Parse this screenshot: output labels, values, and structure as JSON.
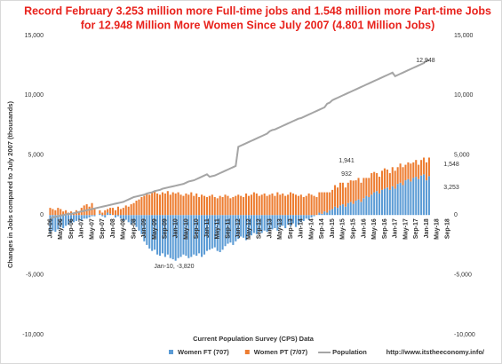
{
  "chart_data": {
    "type": "bar",
    "title": [
      "Record February 3.253 million more Full-time  jobs  and 1.548 million more Part-time Jobs",
      "for 12.948 Million More Women Since July 2007 (4.801 Million Jobs)"
    ],
    "y_axis_label": "Changes in Jobs compared to July 2007 (thousands)",
    "x_axis_label": "Current Population Survey (CPS) Data",
    "source": "http://www.itstheeconomy.info/",
    "categories": [
      "Jan-06",
      null,
      null,
      null,
      "May-06",
      null,
      null,
      null,
      "Sep-06",
      null,
      null,
      null,
      "Jan-07",
      null,
      null,
      null,
      "May-07",
      null,
      null,
      null,
      "Sep-07",
      null,
      null,
      null,
      "Jan-08",
      null,
      null,
      null,
      "May-08",
      null,
      null,
      null,
      "Sep-08",
      null,
      null,
      null,
      "Jan-09",
      null,
      null,
      null,
      "May-09",
      null,
      null,
      null,
      "Sep-09",
      null,
      null,
      null,
      "Jan-10",
      null,
      null,
      null,
      "May-10",
      null,
      null,
      null,
      "Sep-10",
      null,
      null,
      null,
      "Jan-11",
      null,
      null,
      null,
      "May-11",
      null,
      null,
      null,
      "Sep-11",
      null,
      null,
      null,
      "Jan-12",
      null,
      null,
      null,
      "May-12",
      null,
      null,
      null,
      "Sep-12",
      null,
      null,
      null,
      "Jan-13",
      null,
      null,
      null,
      "May-13",
      null,
      null,
      null,
      "Sep-13",
      null,
      null,
      null,
      "Jan-14",
      null,
      null,
      null,
      "May-14",
      null,
      null,
      null,
      "Sep-14",
      null,
      null,
      null,
      "Jan-15",
      null,
      null,
      null,
      "May-15",
      null,
      null,
      null,
      "Sep-15",
      null,
      null,
      null,
      "Jan-16",
      null,
      null,
      null,
      "May-16",
      null,
      null,
      null,
      "Sep-16",
      null,
      null,
      null,
      "Jan-17",
      null,
      null,
      null,
      "May-17",
      null,
      null,
      null,
      "Sep-17",
      null,
      null,
      null,
      "Jan-18",
      null,
      null,
      null,
      "May-18",
      null,
      null,
      null,
      "Sep-18"
    ],
    "series": [
      {
        "name": "Women FT (707)",
        "color": "#5b9bd5",
        "kind": "bar",
        "values": [
          -1500,
          -1300,
          -1400,
          -1200,
          -1000,
          -1100,
          -900,
          -800,
          -700,
          -600,
          -500,
          -400,
          -500,
          -300,
          -300,
          -200,
          -100,
          -100,
          0,
          100,
          -100,
          -200,
          200,
          100,
          0,
          -200,
          -100,
          -300,
          -500,
          -400,
          -600,
          -800,
          -700,
          -1000,
          -1300,
          -1600,
          -2200,
          -2500,
          -2800,
          -3000,
          -2900,
          -3300,
          -3400,
          -3200,
          -3500,
          -3300,
          -3600,
          -3700,
          -3820,
          -3600,
          -3500,
          -3300,
          -3400,
          -3600,
          -3500,
          -3300,
          -3400,
          -3200,
          -3500,
          -3300,
          -3000,
          -2900,
          -2800,
          -2700,
          -3000,
          -3100,
          -2900,
          -2600,
          -2400,
          -2300,
          -2500,
          -2200,
          -2000,
          -1800,
          -1900,
          -2100,
          -1800,
          -1700,
          -1500,
          -1600,
          -1400,
          -1500,
          -1300,
          -1400,
          -1300,
          -1200,
          -1100,
          -1300,
          -1000,
          -900,
          -1100,
          -800,
          -900,
          -700,
          -1000,
          -800,
          -600,
          -500,
          -300,
          -400,
          -200,
          -100,
          0,
          200,
          100,
          300,
          200,
          400,
          500,
          700,
          600,
          800,
          900,
          700,
          1000,
          1100,
          932,
          1200,
          1300,
          1100,
          1400,
          1600,
          1500,
          1700,
          1900,
          2000,
          1800,
          2100,
          2200,
          2300,
          2100,
          2400,
          2200,
          2600,
          2700,
          2500,
          2900,
          3000,
          2800,
          3100,
          3200,
          3000,
          3300,
          3400,
          2900,
          3253,
          null,
          null,
          null,
          null,
          null,
          null,
          null
        ]
      },
      {
        "name": "Women PT (7/07)",
        "color": "#ed7d31",
        "kind": "bar",
        "values": [
          600,
          500,
          400,
          600,
          500,
          300,
          400,
          200,
          300,
          200,
          400,
          300,
          600,
          800,
          900,
          700,
          1000,
          500,
          0,
          300,
          200,
          400,
          300,
          500,
          600,
          400,
          700,
          500,
          600,
          800,
          700,
          900,
          1000,
          1200,
          1300,
          1500,
          1600,
          1800,
          1700,
          1900,
          2000,
          1800,
          1700,
          1900,
          1800,
          2000,
          1700,
          1900,
          1800,
          1900,
          1700,
          1600,
          1800,
          1700,
          1900,
          1600,
          1800,
          1500,
          1700,
          1600,
          1500,
          1600,
          1700,
          1500,
          1400,
          1600,
          1500,
          1700,
          1600,
          1400,
          1500,
          1600,
          1700,
          1600,
          1500,
          1800,
          1600,
          1700,
          1900,
          1800,
          1600,
          1700,
          1800,
          1600,
          1700,
          1800,
          1600,
          1900,
          1700,
          1800,
          1600,
          1700,
          1900,
          1800,
          1700,
          1600,
          1700,
          1500,
          1600,
          1800,
          1700,
          1600,
          1500,
          1700,
          1800,
          1600,
          1700,
          1500,
          1600,
          1800,
          1700,
          1900,
          1800,
          1600,
          1700,
          1800,
          1941,
          1700,
          1800,
          1600,
          1700,
          1500,
          1600,
          1800,
          1700,
          1500,
          1400,
          1600,
          1700,
          1500,
          1400,
          1600,
          1500,
          1400,
          1600,
          1500,
          1300,
          1400,
          1500,
          1300,
          1400,
          1200,
          1300,
          1400,
          1500,
          1548,
          null,
          null,
          null,
          null,
          null,
          null,
          null
        ]
      },
      {
        "name": "Population",
        "color": "#a5a5a5",
        "kind": "line",
        "values": [
          -300,
          -200,
          -150,
          -100,
          -50,
          0,
          50,
          100,
          100,
          150,
          200,
          250,
          300,
          350,
          400,
          450,
          500,
          550,
          600,
          650,
          700,
          750,
          800,
          850,
          900,
          950,
          1000,
          1050,
          1100,
          1200,
          1300,
          1400,
          1500,
          1550,
          1600,
          1650,
          1700,
          1800,
          1850,
          1900,
          2000,
          2050,
          2100,
          2200,
          2250,
          2300,
          2350,
          2400,
          2450,
          2500,
          2550,
          2600,
          2700,
          2800,
          2850,
          2900,
          3000,
          3100,
          3200,
          3300,
          3400,
          3200,
          3250,
          3300,
          3400,
          3500,
          3600,
          3700,
          3800,
          3900,
          4000,
          4100,
          5700,
          5800,
          5900,
          6000,
          6100,
          6200,
          6300,
          6400,
          6500,
          6600,
          6700,
          6800,
          7000,
          7100,
          7150,
          7250,
          7350,
          7450,
          7550,
          7650,
          7750,
          7850,
          7950,
          8050,
          8100,
          8200,
          8300,
          8400,
          8500,
          8600,
          8700,
          8800,
          8900,
          9000,
          9300,
          9400,
          9600,
          9700,
          9800,
          9900,
          10000,
          10100,
          10200,
          10300,
          10400,
          10500,
          10600,
          10700,
          10800,
          10900,
          11000,
          11100,
          11200,
          11300,
          11400,
          11500,
          11600,
          11700,
          11800,
          11900,
          11600,
          11700,
          11800,
          11900,
          12000,
          12100,
          12200,
          12300,
          12400,
          12500,
          12600,
          12700,
          12900,
          12948,
          null,
          null,
          null,
          null,
          null,
          null,
          null
        ]
      }
    ],
    "annotations": [
      {
        "text": "Jan-10, -3,820",
        "color": "#2e75b6"
      },
      {
        "text": "1,941",
        "color": "#e03020"
      },
      {
        "text": "932",
        "color": "#2e75b6"
      },
      {
        "text": "12,948",
        "color": "#666666"
      },
      {
        "text": "1,548",
        "color": "#e03020"
      },
      {
        "text": "3,253",
        "color": "#2e75b6"
      }
    ],
    "ylim": [
      -10000,
      15000
    ],
    "yticks": [
      {
        "value": -10000,
        "label": "-10,000"
      },
      {
        "value": -5000,
        "label": "-5,000"
      },
      0,
      {
        "value": 5000,
        "label": "5,000"
      },
      {
        "value": 10000,
        "label": "10,000"
      },
      {
        "value": 15000,
        "label": "15,000"
      }
    ],
    "y2lim": [
      -10000,
      15000
    ],
    "y2ticks": [
      {
        "value": -10000,
        "label": "-10,000"
      },
      {
        "value": -5000,
        "label": "-5,000"
      },
      0,
      {
        "value": 5000,
        "label": "5,000"
      },
      {
        "value": 10000,
        "label": "10,000"
      },
      {
        "value": 15000,
        "label": "15,000"
      }
    ],
    "grid": false
  }
}
